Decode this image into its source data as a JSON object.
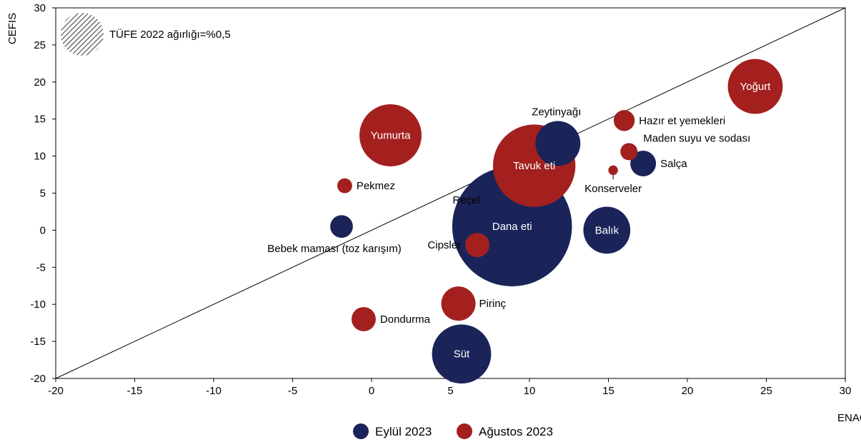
{
  "chart_data": {
    "type": "scatter",
    "subtype": "bubble",
    "xlabel": "ENAG",
    "ylabel": "CEFIS",
    "xlim": [
      -20,
      30
    ],
    "ylim": [
      -20,
      30
    ],
    "x_ticks": [
      "-20",
      "-15",
      "-10",
      "-5",
      "0",
      "5",
      "10",
      "15",
      "20",
      "25",
      "30"
    ],
    "y_ticks": [
      "-20",
      "-15",
      "-10",
      "-5",
      "0",
      "5",
      "10",
      "15",
      "20",
      "25",
      "30"
    ],
    "reference_line": {
      "from": [
        -20,
        -20
      ],
      "to": [
        30,
        30
      ]
    },
    "size_note": "TÜFE 2022 ağırlığı=%0,5",
    "size_note_weight": 0.5,
    "grid": false,
    "legend_position": "bottom-center",
    "colors": {
      "Eylül 2023": "#1b2458",
      "Ağustos 2023": "#a3201f"
    },
    "series": [
      {
        "name": "Eylül 2023",
        "color": "#1b2458",
        "points": [
          {
            "label": "Dana eti",
            "x": 8.9,
            "y": 0.5,
            "weight": 3.9
          },
          {
            "label": "Süt",
            "x": 5.7,
            "y": -16.7,
            "weight": 0.95
          },
          {
            "label": "Balık",
            "x": 14.9,
            "y": 0.0,
            "weight": 0.6
          },
          {
            "label": "Zeytinyağı",
            "x": 11.8,
            "y": 11.7,
            "weight": 0.55
          },
          {
            "label": "Salça",
            "x": 17.2,
            "y": 9.0,
            "weight": 0.18
          },
          {
            "label": "Bebek maması (toz karışım)",
            "x": -1.9,
            "y": 0.5,
            "weight": 0.14
          }
        ]
      },
      {
        "name": "Ağustos 2023",
        "color": "#a3201f",
        "points": [
          {
            "label": "Tavuk eti",
            "x": 10.3,
            "y": 8.7,
            "weight": 1.85
          },
          {
            "label": "Yumurta",
            "x": 1.2,
            "y": 12.8,
            "weight": 1.05
          },
          {
            "label": "Yoğurt",
            "x": 24.3,
            "y": 19.4,
            "weight": 0.82
          },
          {
            "label": "Pirinç",
            "x": 5.5,
            "y": -9.9,
            "weight": 0.32
          },
          {
            "label": "Dondurma",
            "x": -0.5,
            "y": -12.0,
            "weight": 0.16
          },
          {
            "label": "Cipsler",
            "x": 6.7,
            "y": -2.0,
            "weight": 0.16
          },
          {
            "label": "Hazır et yemekleri",
            "x": 16.0,
            "y": 14.8,
            "weight": 0.12
          },
          {
            "label": "Maden suyu ve sodası",
            "x": 16.3,
            "y": 10.6,
            "weight": 0.08
          },
          {
            "label": "Pekmez",
            "x": -1.7,
            "y": 6.0,
            "weight": 0.06
          },
          {
            "label": "Konserveler",
            "x": 15.3,
            "y": 8.1,
            "weight": 0.025
          },
          {
            "label": "Reçel",
            "x": 8.9,
            "y": 0.5,
            "weight": 0
          }
        ]
      }
    ]
  }
}
